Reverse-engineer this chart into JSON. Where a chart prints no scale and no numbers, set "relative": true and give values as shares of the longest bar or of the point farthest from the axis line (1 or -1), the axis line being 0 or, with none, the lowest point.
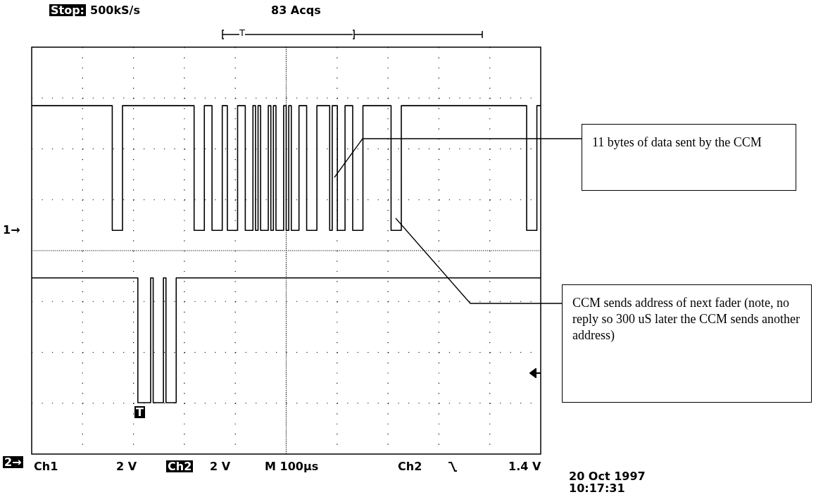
{
  "chart_data": {
    "type": "step",
    "relative": true,
    "grid": true,
    "legend": false,
    "line_style": "solid",
    "marker": "none",
    "categories": [
      null,
      null,
      null,
      null,
      null,
      null,
      null,
      null,
      null,
      null,
      null,
      null,
      null,
      null,
      null,
      null,
      null,
      null,
      null,
      null,
      null,
      null,
      null,
      null,
      null,
      null,
      null,
      null,
      null,
      null,
      null,
      null,
      null,
      null,
      null,
      null,
      null,
      null,
      null,
      null,
      null,
      null,
      null,
      null,
      null,
      null,
      null,
      null,
      null,
      null,
      null,
      null,
      null,
      null,
      null,
      null,
      null,
      null,
      null,
      null,
      null,
      null,
      null,
      null,
      null,
      null,
      null,
      null,
      null,
      null,
      null,
      null,
      null,
      null,
      null,
      null,
      null,
      null,
      null,
      null,
      null,
      null,
      null,
      null,
      null,
      null,
      null,
      null,
      null,
      null,
      null,
      null,
      null,
      null,
      null,
      null,
      null,
      null,
      null,
      null,
      null,
      null,
      null,
      null,
      null,
      null,
      null,
      null,
      null,
      null,
      null,
      null,
      null,
      null,
      null,
      null,
      null,
      null,
      null,
      null,
      null,
      null,
      null,
      null,
      null,
      null,
      null,
      null,
      null,
      null,
      null,
      null,
      null,
      null,
      null,
      null,
      null,
      null,
      null,
      null,
      null,
      null,
      null,
      null,
      null,
      null,
      null,
      null,
      null,
      null,
      null,
      null,
      null,
      null,
      null,
      null,
      null,
      null,
      null,
      null,
      null,
      null,
      null,
      null,
      null,
      null,
      null,
      null,
      null,
      null,
      null,
      null,
      null,
      null,
      null,
      null,
      null,
      null,
      null,
      null,
      null,
      null,
      null,
      null,
      null,
      null,
      null,
      null,
      null,
      null,
      null,
      null,
      null,
      null,
      null,
      null,
      null,
      null,
      null,
      null
    ],
    "series": [
      {
        "color": "#000000",
        "values": [
          1,
          1,
          1,
          1,
          1,
          1,
          1,
          1,
          1,
          1,
          1,
          1,
          1,
          1,
          1,
          1,
          1,
          1,
          1,
          1,
          1,
          1,
          1,
          1,
          1,
          1,
          1,
          1,
          1,
          1,
          1,
          1,
          0.58,
          0.58,
          0.58,
          0.58,
          1,
          1,
          1,
          1,
          1,
          1,
          1,
          1,
          1,
          1,
          1,
          1,
          1,
          1,
          1,
          1,
          1,
          1,
          1,
          1,
          1,
          1,
          1,
          1,
          1,
          1,
          1,
          1,
          0.58,
          0.58,
          0.58,
          0.58,
          1,
          1,
          1,
          0.58,
          0.58,
          0.58,
          0.58,
          1,
          1,
          0.58,
          0.58,
          0.58,
          0.58,
          1,
          1,
          1,
          0.58,
          0.58,
          0.58,
          1,
          0.58,
          1,
          0.58,
          0.58,
          0.58,
          1,
          0.58,
          1,
          0.58,
          0.58,
          0.58,
          1,
          0.58,
          1,
          0.58,
          0.58,
          0.58,
          1,
          1,
          1,
          0.58,
          0.58,
          0.58,
          0.58,
          1,
          1,
          1,
          1,
          1,
          0.58,
          1,
          1,
          0.58,
          0.58,
          0.58,
          1,
          1,
          1,
          0.58,
          0.58,
          0.58,
          0.58,
          1,
          1,
          1,
          1,
          1,
          1,
          1,
          1,
          1,
          1,
          1,
          0.58,
          0.58,
          0.58,
          0.58,
          1,
          1,
          1,
          1,
          1,
          1,
          1,
          1,
          1,
          1,
          1,
          1,
          1,
          1,
          1,
          1,
          1,
          1,
          1,
          1,
          1,
          1,
          1,
          1,
          1,
          1,
          1,
          1,
          1,
          1,
          1,
          1,
          1,
          1,
          1,
          1,
          1,
          1,
          1,
          1,
          1,
          1,
          1,
          1,
          1,
          1,
          1,
          1,
          1,
          0.58,
          0.58,
          0.58,
          0.58,
          1,
          1
        ]
      },
      {
        "color": "#000000",
        "values": [
          0.42,
          0.42,
          0.42,
          0.42,
          0.42,
          0.42,
          0.42,
          0.42,
          0.42,
          0.42,
          0.42,
          0.42,
          0.42,
          0.42,
          0.42,
          0.42,
          0.42,
          0.42,
          0.42,
          0.42,
          0.42,
          0.42,
          0.42,
          0.42,
          0.42,
          0.42,
          0.42,
          0.42,
          0.42,
          0.42,
          0.42,
          0.42,
          0.42,
          0.42,
          0.42,
          0.42,
          0.42,
          0.42,
          0.42,
          0.42,
          0.42,
          0.42,
          0,
          0,
          0,
          0,
          0,
          0.42,
          0,
          0,
          0,
          0,
          0.42,
          0,
          0,
          0,
          0,
          0.42,
          0.42,
          0.42,
          0.42,
          0.42,
          0.42,
          0.42,
          0.42,
          0.42,
          0.42,
          0.42,
          0.42,
          0.42,
          0.42,
          0.42,
          0.42,
          0.42,
          0.42,
          0.42,
          0.42,
          0.42,
          0.42,
          0.42,
          0.42,
          0.42,
          0.42,
          0.42,
          0.42,
          0.42,
          0.42,
          0.42,
          0.42,
          0.42,
          0.42,
          0.42,
          0.42,
          0.42,
          0.42,
          0.42,
          0.42,
          0.42,
          0.42,
          0.42,
          0.42,
          0.42,
          0.42,
          0.42,
          0.42,
          0.42,
          0.42,
          0.42,
          0.42,
          0.42,
          0.42,
          0.42,
          0.42,
          0.42,
          0.42,
          0.42,
          0.42,
          0.42,
          0.42,
          0.42,
          0.42,
          0.42,
          0.42,
          0.42,
          0.42,
          0.42,
          0.42,
          0.42,
          0.42,
          0.42,
          0.42,
          0.42,
          0.42,
          0.42,
          0.42,
          0.42,
          0.42,
          0.42,
          0.42,
          0.42,
          0.42,
          0.42,
          0.42,
          0.42,
          0.42,
          0.42,
          0.42,
          0.42,
          0.42,
          0.42,
          0.42,
          0.42,
          0.42,
          0.42,
          0.42,
          0.42,
          0.42,
          0.42,
          0.42,
          0.42,
          0.42,
          0.42,
          0.42,
          0.42,
          0.42,
          0.42,
          0.42,
          0.42,
          0.42,
          0.42,
          0.42,
          0.42,
          0.42,
          0.42,
          0.42,
          0.42,
          0.42,
          0.42,
          0.42,
          0.42,
          0.42,
          0.42,
          0.42,
          0.42,
          0.42,
          0.42,
          0.42,
          0.42,
          0.42,
          0.42,
          0.42,
          0.42,
          0.42,
          0.42,
          0.42,
          0.42,
          0.42,
          0.42,
          0.42,
          0.42
        ]
      }
    ],
    "annotations": [
      "Stop:",
      "500kS/s",
      "83 Acqs",
      "1→",
      "2→",
      "Ch1",
      "2 V",
      "Ch2",
      "2 V",
      "M 100µs",
      "Ch2",
      "1.4 V",
      "20 Oct 1997",
      "10:17:31",
      "11 bytes of data sent by the CCM",
      "CCM sends address of next fader (note, no reply so 300 uS later the CCM sends another address)",
      "T",
      "T"
    ]
  }
}
